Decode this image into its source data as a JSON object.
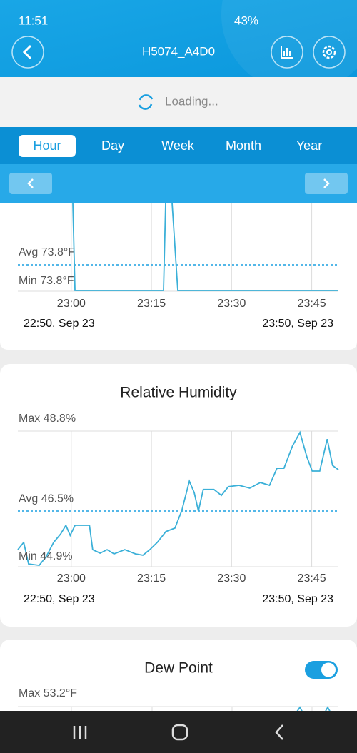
{
  "status_bar": {
    "time": "11:51",
    "battery": "43%"
  },
  "header": {
    "title": "H5074_A4D0"
  },
  "loading": "Loading...",
  "tabs": [
    "Hour",
    "Day",
    "Week",
    "Month",
    "Year"
  ],
  "temperature": {
    "avg_label": "Avg 73.8°F",
    "min_label": "Min 73.8°F",
    "xlim": [
      0,
      60
    ],
    "xticks": [
      {
        "value": 10,
        "label": "23:00"
      },
      {
        "value": 25,
        "label": "23:15"
      },
      {
        "value": 40,
        "label": "23:30"
      },
      {
        "value": 55,
        "label": "23:45"
      }
    ],
    "start": "22:50, Sep 23",
    "end": "23:50, Sep 23"
  },
  "humidity": {
    "title": "Relative Humidity",
    "max": {
      "value": 48.8,
      "label": "Max 48.8%"
    },
    "avg": {
      "value": 46.5,
      "label": "Avg 46.5%"
    },
    "min": {
      "value": 44.9,
      "label": "Min 44.9%"
    },
    "xlim": [
      0,
      60
    ],
    "xticks": [
      {
        "value": 10,
        "label": "23:00"
      },
      {
        "value": 25,
        "label": "23:15"
      },
      {
        "value": 40,
        "label": "23:30"
      },
      {
        "value": 55,
        "label": "23:45"
      }
    ],
    "x": [
      0,
      1.1,
      2.0,
      4.0,
      5.3,
      6.7,
      8.0,
      9.0,
      9.8,
      10.7,
      13.4,
      14.0,
      15.4,
      16.7,
      18.0,
      20.0,
      22.0,
      23.4,
      24.7,
      26.1,
      27.7,
      29.4,
      30.7,
      32.1,
      33.0,
      33.8,
      34.7,
      36.7,
      38.1,
      39.4,
      41.4,
      43.4,
      45.4,
      47.1,
      48.5,
      49.8,
      51.4,
      52.8,
      54.1,
      55.1,
      56.5,
      57.9,
      58.9,
      60
    ],
    "values": [
      45.39,
      45.6,
      44.98,
      44.94,
      45.19,
      45.6,
      45.84,
      46.09,
      45.8,
      46.09,
      46.09,
      45.39,
      45.29,
      45.39,
      45.27,
      45.39,
      45.27,
      45.23,
      45.39,
      45.6,
      45.91,
      46.01,
      46.52,
      47.36,
      47.03,
      46.5,
      47.12,
      47.12,
      46.95,
      47.2,
      47.24,
      47.16,
      47.32,
      47.24,
      47.73,
      47.73,
      48.37,
      48.76,
      48.06,
      47.65,
      47.65,
      48.57,
      47.81,
      47.69
    ],
    "start": "22:50, Sep 23",
    "end": "23:50, Sep 23"
  },
  "dew_point": {
    "title": "Dew Point",
    "max_label": "Max 53.2°F"
  }
}
